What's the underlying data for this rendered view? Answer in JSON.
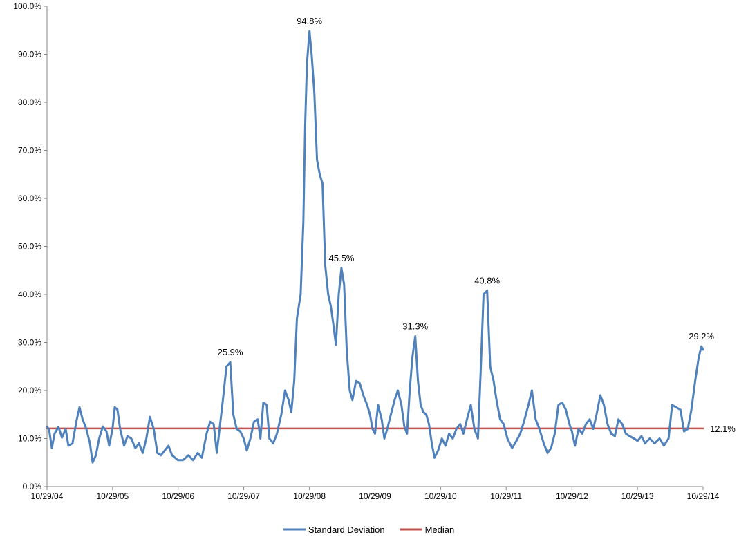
{
  "chart_data": {
    "type": "line",
    "title": "",
    "xlabel": "",
    "ylabel": "",
    "ylim": [
      0,
      100
    ],
    "y_ticks": [
      "0.0%",
      "10.0%",
      "20.0%",
      "30.0%",
      "40.0%",
      "50.0%",
      "60.0%",
      "70.0%",
      "80.0%",
      "90.0%",
      "100.0%"
    ],
    "x_ticks": [
      "10/29/04",
      "10/29/05",
      "10/29/06",
      "10/29/07",
      "10/29/08",
      "10/29/09",
      "10/29/10",
      "10/29/11",
      "10/29/12",
      "10/29/13",
      "10/29/14"
    ],
    "grid": false,
    "legend_position": "bottom",
    "series": [
      {
        "name": "Standard Deviation",
        "color": "#4f81bd",
        "points": [
          [
            "10/29/04",
            12.5
          ],
          [
            "11/10/04",
            11.8
          ],
          [
            "11/25/04",
            8.0
          ],
          [
            "12/10/04",
            11.0
          ],
          [
            "1/1/05",
            12.4
          ],
          [
            "1/20/05",
            10.2
          ],
          [
            "2/10/05",
            12.0
          ],
          [
            "2/25/05",
            8.5
          ],
          [
            "3/20/05",
            9.0
          ],
          [
            "4/10/05",
            13.5
          ],
          [
            "4/28/05",
            16.5
          ],
          [
            "5/15/05",
            14.0
          ],
          [
            "6/5/05",
            12.0
          ],
          [
            "6/25/05",
            9.0
          ],
          [
            "7/10/05",
            5.0
          ],
          [
            "7/28/05",
            6.5
          ],
          [
            "8/15/05",
            10.0
          ],
          [
            "9/5/05",
            12.5
          ],
          [
            "9/25/05",
            11.5
          ],
          [
            "10/10/05",
            8.5
          ],
          [
            "10/29/05",
            12.0
          ],
          [
            "11/10/05",
            16.5
          ],
          [
            "11/25/05",
            16.0
          ],
          [
            "12/10/05",
            12.0
          ],
          [
            "1/1/06",
            8.5
          ],
          [
            "1/20/06",
            10.5
          ],
          [
            "2/10/06",
            10.0
          ],
          [
            "3/5/06",
            8.0
          ],
          [
            "3/25/06",
            9.0
          ],
          [
            "4/15/06",
            7.0
          ],
          [
            "5/5/06",
            10.0
          ],
          [
            "5/25/06",
            14.5
          ],
          [
            "6/15/06",
            12.0
          ],
          [
            "7/5/06",
            7.0
          ],
          [
            "7/25/06",
            6.5
          ],
          [
            "8/15/06",
            7.5
          ],
          [
            "9/5/06",
            8.5
          ],
          [
            "9/25/06",
            6.5
          ],
          [
            "10/29/06",
            5.5
          ],
          [
            "11/25/06",
            5.5
          ],
          [
            "12/25/06",
            6.5
          ],
          [
            "1/20/07",
            5.5
          ],
          [
            "2/15/07",
            7.0
          ],
          [
            "3/10/07",
            6.0
          ],
          [
            "4/5/07",
            11.0
          ],
          [
            "4/25/07",
            13.5
          ],
          [
            "5/15/07",
            13.0
          ],
          [
            "6/1/07",
            7.0
          ],
          [
            "6/15/07",
            11.5
          ],
          [
            "7/5/07",
            18.0
          ],
          [
            "7/25/07",
            25.0
          ],
          [
            "8/15/07",
            25.9
          ],
          [
            "9/1/07",
            15.0
          ],
          [
            "9/20/07",
            12.0
          ],
          [
            "10/10/07",
            11.5
          ],
          [
            "10/29/07",
            10.0
          ],
          [
            "11/15/07",
            7.5
          ],
          [
            "12/5/07",
            10.0
          ],
          [
            "12/25/07",
            13.5
          ],
          [
            "1/15/08",
            14.0
          ],
          [
            "1/30/08",
            10.0
          ],
          [
            "2/15/08",
            17.5
          ],
          [
            "3/5/08",
            17.0
          ],
          [
            "3/20/08",
            10.0
          ],
          [
            "4/10/08",
            9.0
          ],
          [
            "5/1/08",
            11.0
          ],
          [
            "5/25/08",
            15.0
          ],
          [
            "6/15/08",
            20.0
          ],
          [
            "7/5/08",
            18.0
          ],
          [
            "7/20/08",
            15.5
          ],
          [
            "8/5/08",
            22.0
          ],
          [
            "8/20/08",
            35.0
          ],
          [
            "9/10/08",
            40.0
          ],
          [
            "9/25/08",
            55.0
          ],
          [
            "10/5/08",
            75.0
          ],
          [
            "10/15/08",
            88.0
          ],
          [
            "10/29/08",
            94.8
          ],
          [
            "11/10/08",
            90.0
          ],
          [
            "11/25/08",
            82.0
          ],
          [
            "12/10/08",
            68.0
          ],
          [
            "12/25/08",
            65.0
          ],
          [
            "1/10/09",
            63.0
          ],
          [
            "1/25/09",
            46.0
          ],
          [
            "2/10/09",
            40.0
          ],
          [
            "2/25/09",
            37.5
          ],
          [
            "3/10/09",
            34.0
          ],
          [
            "3/25/09",
            29.5
          ],
          [
            "4/10/09",
            40.0
          ],
          [
            "4/25/09",
            45.5
          ],
          [
            "5/10/09",
            42.0
          ],
          [
            "5/25/09",
            28.0
          ],
          [
            "6/10/09",
            20.0
          ],
          [
            "6/25/09",
            18.0
          ],
          [
            "7/15/09",
            22.0
          ],
          [
            "8/5/09",
            21.5
          ],
          [
            "8/25/09",
            19.0
          ],
          [
            "9/15/09",
            17.0
          ],
          [
            "10/1/09",
            15.0
          ],
          [
            "10/15/09",
            12.0
          ],
          [
            "10/29/09",
            11.0
          ],
          [
            "11/15/09",
            17.0
          ],
          [
            "12/5/09",
            14.0
          ],
          [
            "12/20/09",
            10.0
          ],
          [
            "1/5/10",
            12.0
          ],
          [
            "1/25/10",
            15.0
          ],
          [
            "2/15/10",
            18.0
          ],
          [
            "3/5/10",
            20.0
          ],
          [
            "3/25/10",
            17.0
          ],
          [
            "4/10/10",
            12.5
          ],
          [
            "4/25/10",
            11.0
          ],
          [
            "5/10/10",
            20.0
          ],
          [
            "5/25/10",
            27.0
          ],
          [
            "6/10/10",
            31.3
          ],
          [
            "6/25/10",
            22.0
          ],
          [
            "7/10/10",
            17.0
          ],
          [
            "7/25/10",
            15.5
          ],
          [
            "8/10/10",
            15.0
          ],
          [
            "8/25/10",
            13.0
          ],
          [
            "9/10/10",
            9.0
          ],
          [
            "9/25/10",
            6.0
          ],
          [
            "10/15/10",
            7.5
          ],
          [
            "11/5/10",
            10.0
          ],
          [
            "11/25/10",
            8.5
          ],
          [
            "12/15/10",
            11.0
          ],
          [
            "1/5/11",
            10.0
          ],
          [
            "1/25/11",
            12.0
          ],
          [
            "2/15/11",
            13.0
          ],
          [
            "3/5/11",
            11.0
          ],
          [
            "3/25/11",
            14.0
          ],
          [
            "4/15/11",
            17.0
          ],
          [
            "5/5/11",
            12.0
          ],
          [
            "5/25/11",
            10.0
          ],
          [
            "6/10/11",
            25.0
          ],
          [
            "6/25/11",
            40.0
          ],
          [
            "7/15/11",
            40.8
          ],
          [
            "8/1/11",
            25.0
          ],
          [
            "8/20/11",
            22.0
          ],
          [
            "9/5/11",
            18.0
          ],
          [
            "9/25/11",
            14.0
          ],
          [
            "10/15/11",
            13.0
          ],
          [
            "11/5/11",
            10.0
          ],
          [
            "12/1/11",
            8.0
          ],
          [
            "12/25/11",
            9.5
          ],
          [
            "1/15/12",
            11.0
          ],
          [
            "2/5/12",
            13.5
          ],
          [
            "3/1/12",
            17.0
          ],
          [
            "3/20/12",
            20.0
          ],
          [
            "4/10/12",
            14.0
          ],
          [
            "5/1/12",
            12.0
          ],
          [
            "5/25/12",
            9.0
          ],
          [
            "6/15/12",
            7.0
          ],
          [
            "7/5/12",
            8.0
          ],
          [
            "7/25/12",
            11.0
          ],
          [
            "8/15/12",
            17.0
          ],
          [
            "9/5/12",
            17.5
          ],
          [
            "9/25/12",
            16.0
          ],
          [
            "10/15/12",
            13.0
          ],
          [
            "10/29/12",
            11.5
          ],
          [
            "11/15/12",
            8.5
          ],
          [
            "12/5/12",
            12.0
          ],
          [
            "12/25/12",
            11.0
          ],
          [
            "1/15/13",
            13.0
          ],
          [
            "2/5/13",
            14.0
          ],
          [
            "2/25/13",
            12.0
          ],
          [
            "3/15/13",
            15.0
          ],
          [
            "4/5/13",
            19.0
          ],
          [
            "4/25/13",
            17.0
          ],
          [
            "5/15/13",
            13.0
          ],
          [
            "6/5/13",
            11.0
          ],
          [
            "6/25/13",
            10.5
          ],
          [
            "7/15/13",
            14.0
          ],
          [
            "8/5/13",
            13.0
          ],
          [
            "8/25/13",
            11.0
          ],
          [
            "9/15/13",
            10.5
          ],
          [
            "10/10/13",
            10.0
          ],
          [
            "10/29/13",
            9.5
          ],
          [
            "11/20/13",
            10.5
          ],
          [
            "12/10/13",
            9.0
          ],
          [
            "1/5/14",
            10.0
          ],
          [
            "2/1/14",
            9.0
          ],
          [
            "3/1/14",
            10.0
          ],
          [
            "3/25/14",
            8.5
          ],
          [
            "4/20/14",
            10.0
          ],
          [
            "5/10/14",
            17.0
          ],
          [
            "6/1/14",
            16.5
          ],
          [
            "6/25/14",
            16.0
          ],
          [
            "7/15/14",
            11.5
          ],
          [
            "8/5/14",
            12.0
          ],
          [
            "8/25/14",
            16.0
          ],
          [
            "9/15/14",
            22.0
          ],
          [
            "10/5/14",
            27.0
          ],
          [
            "10/20/14",
            29.2
          ],
          [
            "10/29/14",
            28.5
          ]
        ]
      },
      {
        "name": "Median",
        "color": "#c0504d",
        "points": [
          [
            "10/29/04",
            12.1
          ],
          [
            "10/29/14",
            12.1
          ]
        ]
      }
    ],
    "annotations": [
      {
        "label": "94.8%",
        "x": "10/29/08",
        "y": 94.8
      },
      {
        "label": "45.5%",
        "x": "4/25/09",
        "y": 45.5
      },
      {
        "label": "25.9%",
        "x": "8/15/07",
        "y": 25.9
      },
      {
        "label": "31.3%",
        "x": "6/10/10",
        "y": 31.3
      },
      {
        "label": "40.8%",
        "x": "7/15/11",
        "y": 40.8
      },
      {
        "label": "29.2%",
        "x": "10/20/14",
        "y": 29.2
      },
      {
        "label": "12.1%",
        "x": "10/29/14",
        "y": 12.1,
        "side": "right"
      }
    ]
  }
}
